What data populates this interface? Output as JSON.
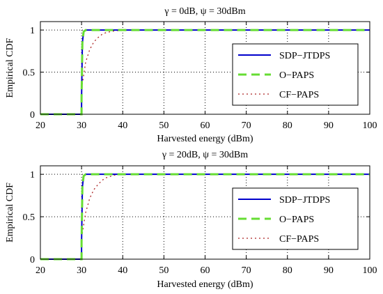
{
  "chart_data": [
    {
      "type": "line",
      "title": "γ = 0dB, ψ = 30dBm",
      "xlabel": "Harvested energy (dBm)",
      "ylabel": "Empirical CDF",
      "xlim": [
        20,
        100
      ],
      "ylim": [
        0,
        1.1
      ],
      "xticks": [
        "20",
        "30",
        "40",
        "50",
        "60",
        "70",
        "80",
        "90",
        "100"
      ],
      "yticks": [
        "0",
        "0.5",
        "1"
      ],
      "grid": true,
      "legend_position": "right",
      "series": [
        {
          "name": "SDP−JTDPS",
          "color": "#0000cc",
          "style": "solid",
          "x": [
            20,
            30,
            30,
            30.2,
            30.5,
            31,
            100
          ],
          "y": [
            0,
            0,
            0.2,
            0.85,
            0.98,
            1,
            1
          ]
        },
        {
          "name": "O−PAPS",
          "color": "#66dd33",
          "style": "dashed",
          "x": [
            20,
            30,
            30,
            30.2,
            30.5,
            31,
            100
          ],
          "y": [
            0,
            0,
            0.2,
            0.85,
            0.98,
            1,
            1
          ]
        },
        {
          "name": "CF−PAPS",
          "color": "#aa2222",
          "style": "dotted",
          "x": [
            20,
            30,
            30,
            31,
            32,
            33,
            34,
            35,
            36,
            38,
            40,
            100
          ],
          "y": [
            0,
            0,
            0.3,
            0.62,
            0.77,
            0.86,
            0.91,
            0.95,
            0.97,
            0.99,
            1,
            1
          ]
        }
      ]
    },
    {
      "type": "line",
      "title": "γ = 20dB, ψ = 30dBm",
      "xlabel": "Harvested energy (dBm)",
      "ylabel": "Empirical CDF",
      "xlim": [
        20,
        100
      ],
      "ylim": [
        0,
        1.1
      ],
      "xticks": [
        "20",
        "30",
        "40",
        "50",
        "60",
        "70",
        "80",
        "90",
        "100"
      ],
      "yticks": [
        "0",
        "0.5",
        "1"
      ],
      "grid": true,
      "legend_position": "right",
      "series": [
        {
          "name": "SDP−JTDPS",
          "color": "#0000cc",
          "style": "solid",
          "x": [
            20,
            30,
            30,
            30.2,
            30.5,
            31,
            100
          ],
          "y": [
            0,
            0,
            0.2,
            0.85,
            0.98,
            1,
            1
          ]
        },
        {
          "name": "O−PAPS",
          "color": "#66dd33",
          "style": "dashed",
          "x": [
            20,
            30,
            30,
            30.2,
            30.5,
            31,
            100
          ],
          "y": [
            0,
            0,
            0.2,
            0.85,
            0.98,
            1,
            1
          ]
        },
        {
          "name": "CF−PAPS",
          "color": "#aa2222",
          "style": "dotted",
          "x": [
            20,
            30,
            30,
            31,
            32,
            33,
            34,
            35,
            36,
            38,
            40,
            100
          ],
          "y": [
            0,
            0,
            0.25,
            0.55,
            0.72,
            0.82,
            0.88,
            0.93,
            0.96,
            0.99,
            1,
            1
          ]
        }
      ]
    }
  ]
}
